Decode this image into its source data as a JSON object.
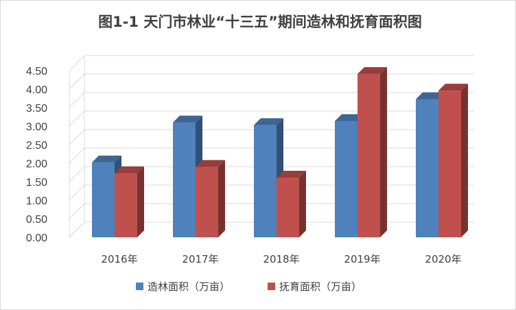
{
  "chart_data": {
    "type": "bar",
    "title": "图1-1  天门市林业“十三五”期间造林和抚育面积图",
    "categories": [
      "2016年",
      "2017年",
      "2018年",
      "2019年",
      "2020年"
    ],
    "series": [
      {
        "name": "造林面积（万亩）",
        "color": "#4f81bd",
        "values": [
          2.02,
          3.1,
          3.03,
          3.14,
          3.73
        ]
      },
      {
        "name": "抚育面积（万亩）",
        "color": "#c0504d",
        "values": [
          1.73,
          1.9,
          1.61,
          4.41,
          3.96
        ]
      }
    ],
    "ylim": [
      0,
      4.5
    ],
    "ytick_labels": [
      "0.00",
      "0.50",
      "1.00",
      "1.50",
      "2.00",
      "2.50",
      "3.00",
      "3.50",
      "4.00",
      "4.50"
    ],
    "grid": true,
    "legend": "bottom",
    "style": "3d-clustered-column"
  }
}
